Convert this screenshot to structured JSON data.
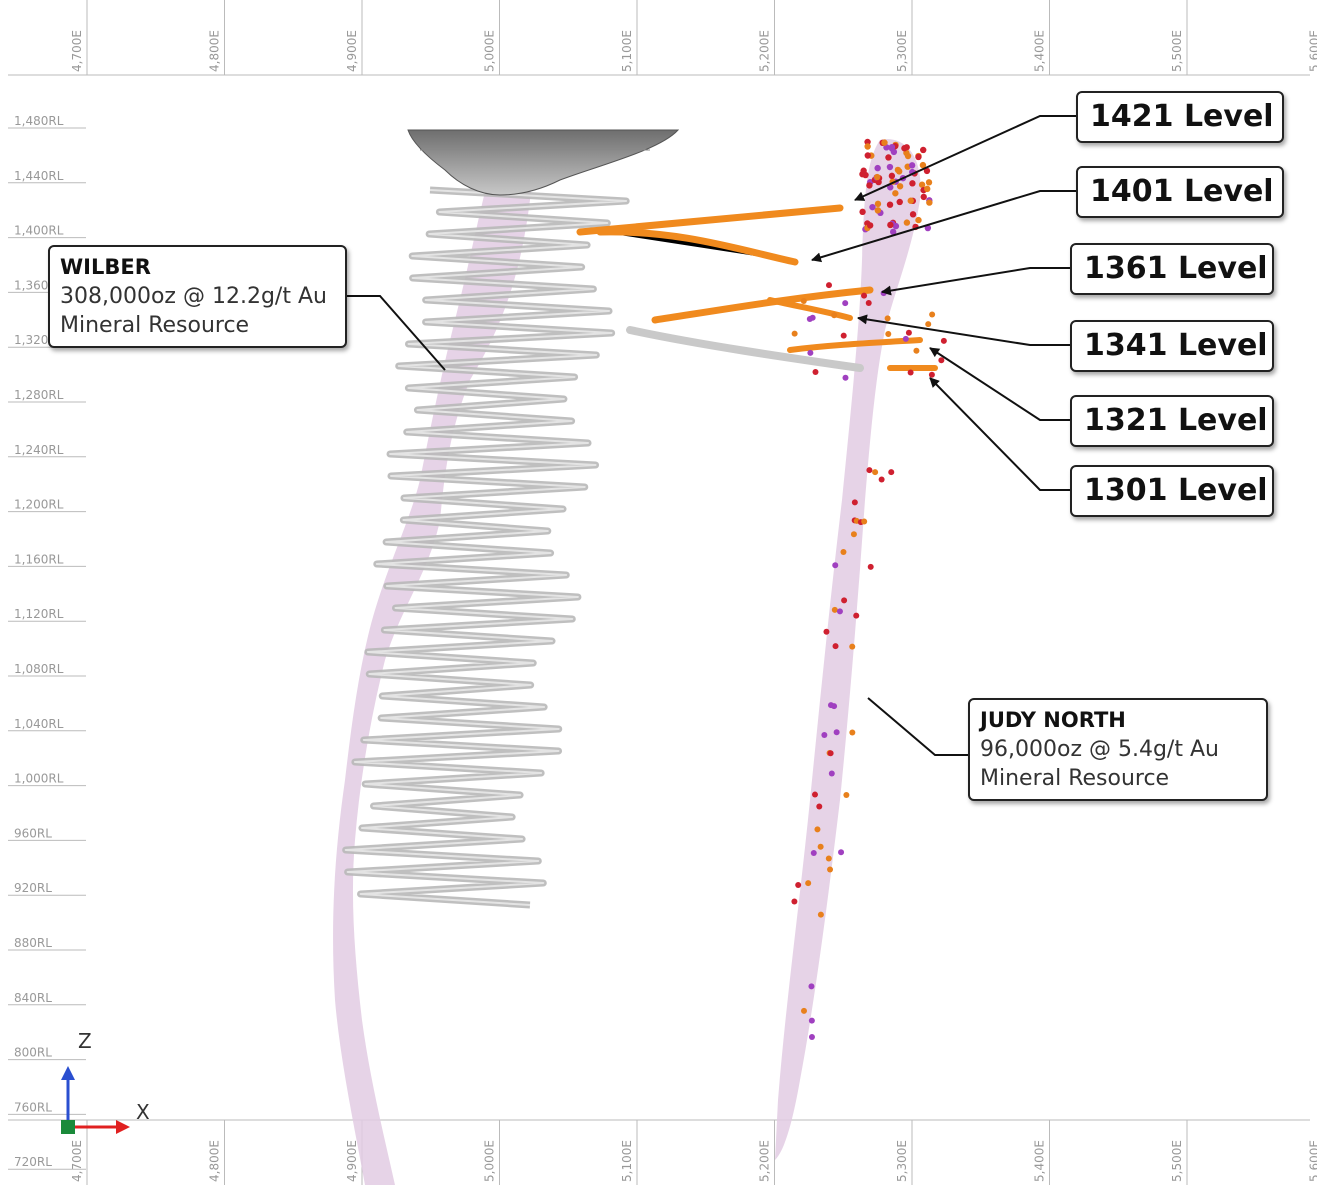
{
  "easting_labels": [
    "4,700E",
    "4,800E",
    "4,900E",
    "5,000E",
    "5,100E",
    "5,200E",
    "5,300E",
    "5,400E",
    "5,500E",
    "5,600E"
  ],
  "rl_labels": [
    "1,480RL",
    "1,440RL",
    "1,400RL",
    "1,360RL",
    "1,320RL",
    "1,280RL",
    "1,240RL",
    "1,200RL",
    "1,160RL",
    "1,120RL",
    "1,080RL",
    "1,040RL",
    "1,000RL",
    "960RL",
    "920RL",
    "880RL",
    "840RL",
    "800RL",
    "760RL",
    "720RL"
  ],
  "levels": [
    {
      "label": "1421 Level"
    },
    {
      "label": "1401 Level"
    },
    {
      "label": "1361 Level"
    },
    {
      "label": "1341 Level"
    },
    {
      "label": "1321 Level"
    },
    {
      "label": "1301 Level"
    }
  ],
  "wilber": {
    "name": "WILBER",
    "grade": "308,000oz @ 12.2g/t Au",
    "category": "Mineral Resource"
  },
  "judy_north": {
    "name": "JUDY NORTH",
    "grade": "96,000oz @ 5.4g/t Au",
    "category": "Mineral Resource"
  },
  "axes": {
    "z": "Z",
    "x": "X"
  },
  "colors": {
    "ore_zone": "#e2cbe3",
    "decline": "#b8b8b8",
    "development": "#f08a1e",
    "samples": [
      "#e8801c",
      "#cf2030",
      "#a040c0"
    ]
  }
}
